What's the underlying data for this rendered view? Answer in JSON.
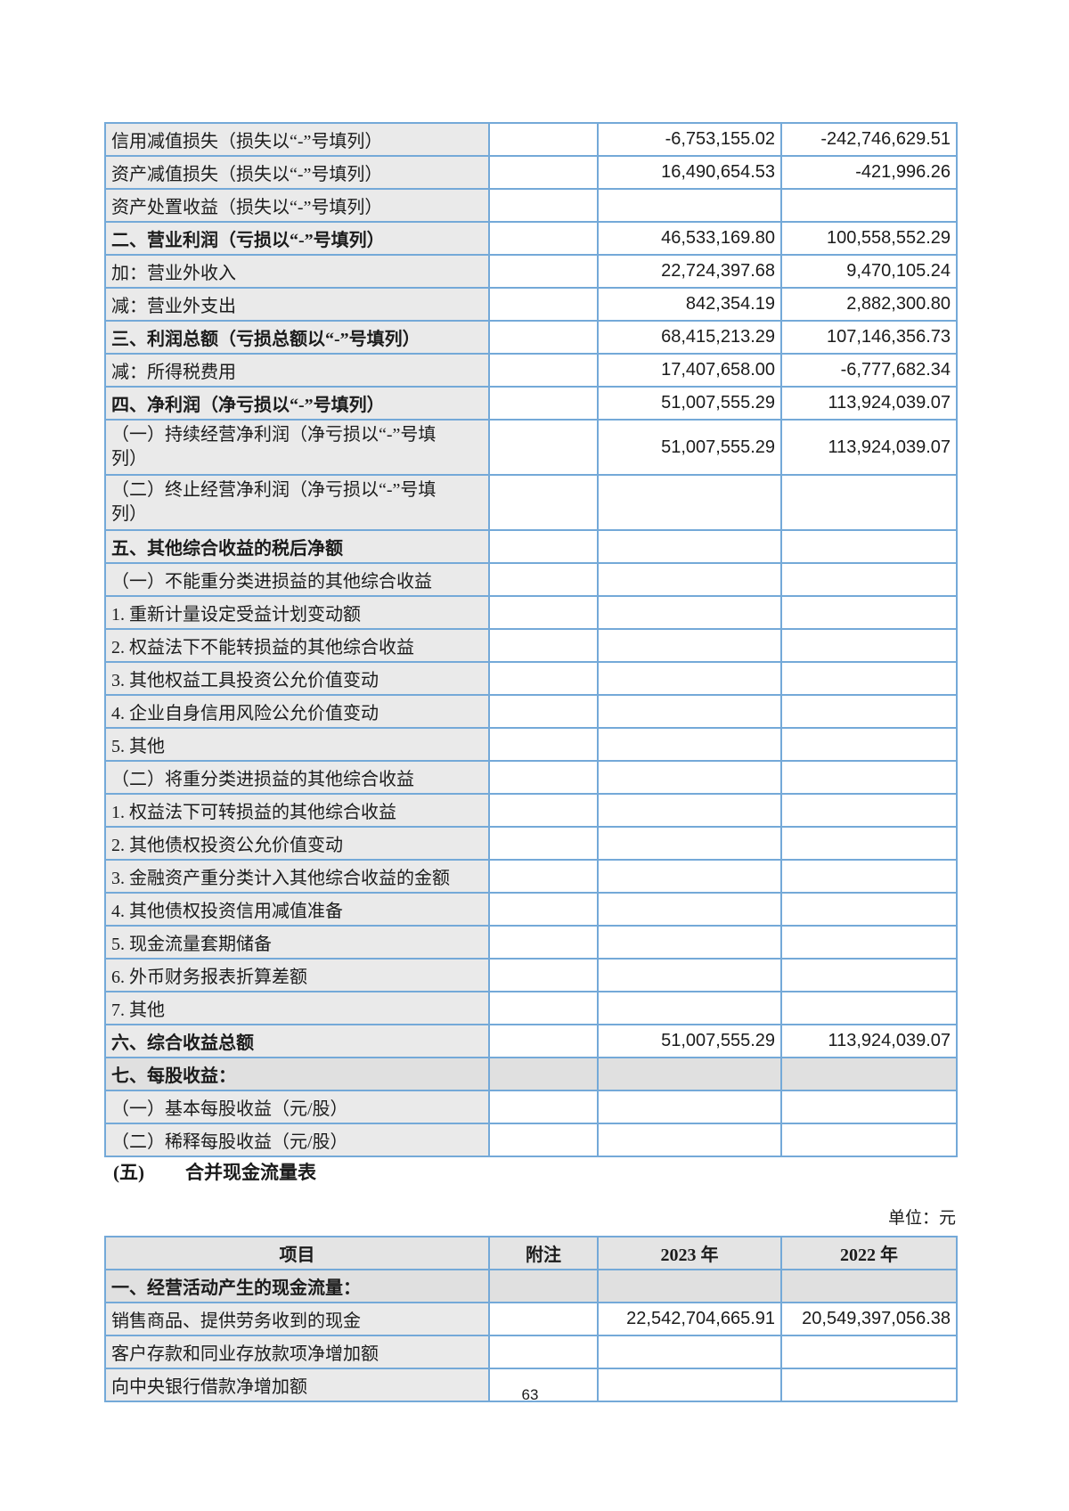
{
  "page_number": "63",
  "unit_label": "单位：元",
  "section_heading": {
    "marker": "(五)",
    "title": "合并现金流量表"
  },
  "income_statement_table": {
    "rows": [
      {
        "label": "信用减值损失（损失以“-”号填列）",
        "note": "",
        "y2023": "-6,753,155.02",
        "y2022": "-242,746,629.51",
        "indent": 2
      },
      {
        "label": "资产减值损失（损失以“-”号填列）",
        "note": "",
        "y2023": "16,490,654.53",
        "y2022": "-421,996.26",
        "indent": 2
      },
      {
        "label": "资产处置收益（损失以“-”号填列）",
        "note": "",
        "y2023": "",
        "y2022": "",
        "indent": 2
      },
      {
        "label": "二、营业利润（亏损以“-”号填列）",
        "note": "",
        "y2023": "46,533,169.80",
        "y2022": "100,558,552.29",
        "bold": true
      },
      {
        "label": "加：营业外收入",
        "note": "",
        "y2023": "22,724,397.68",
        "y2022": "9,470,105.24"
      },
      {
        "label": "减：营业外支出",
        "note": "",
        "y2023": "842,354.19",
        "y2022": "2,882,300.80"
      },
      {
        "label": "三、利润总额（亏损总额以“-”号填列）",
        "note": "",
        "y2023": "68,415,213.29",
        "y2022": "107,146,356.73",
        "bold": true
      },
      {
        "label": "减：所得税费用",
        "note": "",
        "y2023": "17,407,658.00",
        "y2022": "-6,777,682.34"
      },
      {
        "label": "四、净利润（净亏损以“-”号填列）",
        "note": "",
        "y2023": "51,007,555.29",
        "y2022": "113,924,039.07",
        "bold": true
      },
      {
        "label": "（一）持续经营净利润（净亏损以“-”号填\n列）",
        "note": "",
        "y2023": "51,007,555.29",
        "y2022": "113,924,039.07",
        "indent": 1,
        "two": true
      },
      {
        "label": "（二）终止经营净利润（净亏损以“-”号填\n列）",
        "note": "",
        "y2023": "",
        "y2022": "",
        "indent": 1,
        "two": true
      },
      {
        "label": "五、其他综合收益的税后净额",
        "note": "",
        "y2023": "",
        "y2022": "",
        "bold": true
      },
      {
        "label": "（一）不能重分类进损益的其他综合收益",
        "note": "",
        "y2023": "",
        "y2022": "",
        "indent": 1
      },
      {
        "label": "1. 重新计量设定受益计划变动额",
        "note": "",
        "y2023": "",
        "y2022": ""
      },
      {
        "label": "2. 权益法下不能转损益的其他综合收益",
        "note": "",
        "y2023": "",
        "y2022": ""
      },
      {
        "label": "3. 其他权益工具投资公允价值变动",
        "note": "",
        "y2023": "",
        "y2022": ""
      },
      {
        "label": "4. 企业自身信用风险公允价值变动",
        "note": "",
        "y2023": "",
        "y2022": ""
      },
      {
        "label": "5. 其他",
        "note": "",
        "y2023": "",
        "y2022": ""
      },
      {
        "label": "（二）将重分类进损益的其他综合收益",
        "note": "",
        "y2023": "",
        "y2022": "",
        "indent": 1
      },
      {
        "label": "1. 权益法下可转损益的其他综合收益",
        "note": "",
        "y2023": "",
        "y2022": ""
      },
      {
        "label": "2. 其他债权投资公允价值变动",
        "note": "",
        "y2023": "",
        "y2022": ""
      },
      {
        "label": "3. 金融资产重分类计入其他综合收益的金额",
        "note": "",
        "y2023": "",
        "y2022": ""
      },
      {
        "label": "4. 其他债权投资信用减值准备",
        "note": "",
        "y2023": "",
        "y2022": ""
      },
      {
        "label": "5. 现金流量套期储备",
        "note": "",
        "y2023": "",
        "y2022": ""
      },
      {
        "label": "6. 外币财务报表折算差额",
        "note": "",
        "y2023": "",
        "y2022": ""
      },
      {
        "label": "7. 其他",
        "note": "",
        "y2023": "",
        "y2022": ""
      },
      {
        "label": "六、综合收益总额",
        "note": "",
        "y2023": "51,007,555.29",
        "y2022": "113,924,039.07",
        "bold": true
      },
      {
        "label": "七、每股收益：",
        "note": "",
        "y2023": "",
        "y2022": "",
        "bold": true,
        "shade": true
      },
      {
        "label": "（一）基本每股收益（元/股）",
        "note": "",
        "y2023": "",
        "y2022": "",
        "indent": 1
      },
      {
        "label": "（二）稀释每股收益（元/股）",
        "note": "",
        "y2023": "",
        "y2022": "",
        "indent": 1
      }
    ]
  },
  "cashflow_table": {
    "headers": [
      "项目",
      "附注",
      "2023 年",
      "2022 年"
    ],
    "rows": [
      {
        "label": "一、经营活动产生的现金流量：",
        "note": "",
        "y2023": "",
        "y2022": "",
        "bold": true,
        "shade": true
      },
      {
        "label": "销售商品、提供劳务收到的现金",
        "note": "",
        "y2023": "22,542,704,665.91",
        "y2022": "20,549,397,056.38"
      },
      {
        "label": "客户存款和同业存放款项净增加额",
        "note": "",
        "y2023": "",
        "y2022": ""
      },
      {
        "label": "向中央银行借款净增加额",
        "note": "",
        "y2023": "",
        "y2022": ""
      }
    ]
  },
  "colors": {
    "border": "#74A9D8",
    "label_bg": "#EAEAEA",
    "shade_bg": "#E0E0E0",
    "header_bg": "#E4E4E4"
  }
}
